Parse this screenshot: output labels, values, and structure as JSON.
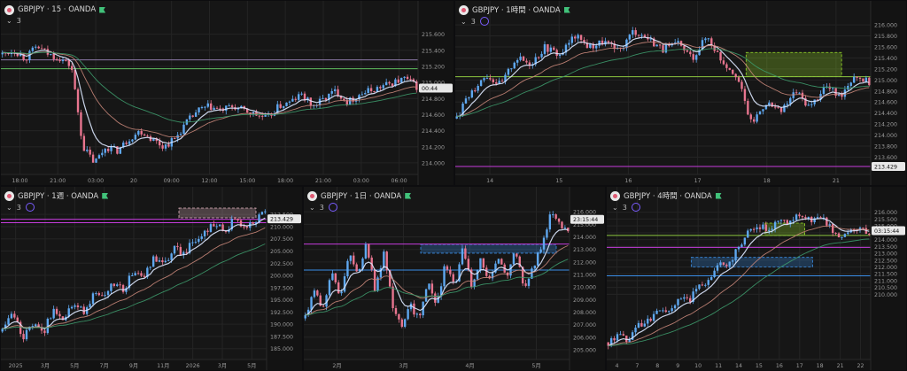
{
  "theme": {
    "bg": "#161616",
    "up": "#5fa8f0",
    "down": "#e8758f",
    "ma_fast": "#dde8ff",
    "ma_mid": "#c9877a",
    "ma_slow": "#3d9a6c"
  },
  "chart_data": [
    {
      "type": "candlestick",
      "symbol": "GBPJPY · 15 · OANDA",
      "indicator_count": "3",
      "ylim": [
        213.9,
        215.75
      ],
      "yticks": [
        "215.600",
        "215.400",
        "215.200",
        "215.000",
        "214.800",
        "214.600",
        "214.400",
        "214.200",
        "214.000"
      ],
      "xticks": [
        "18:00",
        "21:00",
        "03:00",
        "20",
        "09:00",
        "12:00",
        "15:00",
        "18:00",
        "21:00",
        "03:00",
        "06:00"
      ],
      "path": [
        215.35,
        215.4,
        215.3,
        215.45,
        215.35,
        215.3,
        215.2,
        214.2,
        214.0,
        214.2,
        214.15,
        214.3,
        214.4,
        214.3,
        214.2,
        214.3,
        214.5,
        214.65,
        214.7,
        214.65,
        214.7,
        214.65,
        214.6,
        214.55,
        214.7,
        214.75,
        214.85,
        214.7,
        214.8,
        214.9,
        214.75,
        214.85,
        214.9,
        214.95,
        215.0,
        215.05,
        214.95
      ],
      "hlines": [
        {
          "value": 215.17,
          "color": "#5fbf5f"
        },
        {
          "value": 215.28,
          "color": "#8c7aa8"
        }
      ],
      "price_label": {
        "value": "00:44",
        "y": 214.93
      }
    },
    {
      "type": "candlestick",
      "symbol": "GBPJPY · 1時間 · OANDA",
      "indicator_count": "3",
      "ylim": [
        213.35,
        216.05
      ],
      "yticks": [
        "216.000",
        "215.800",
        "215.600",
        "215.400",
        "215.200",
        "215.000",
        "214.800",
        "214.600",
        "214.400",
        "214.200",
        "214.000",
        "213.800",
        "213.600"
      ],
      "xticks": [
        "14",
        "15",
        "16",
        "17",
        "18",
        "21"
      ],
      "path": [
        214.3,
        214.8,
        215.1,
        214.9,
        215.4,
        215.3,
        215.6,
        215.45,
        215.8,
        215.6,
        215.7,
        215.5,
        215.9,
        215.75,
        215.55,
        215.65,
        215.4,
        215.8,
        215.35,
        215.1,
        214.2,
        214.6,
        214.4,
        214.8,
        214.5,
        214.9,
        214.7,
        215.1,
        214.95
      ],
      "hlines": [
        {
          "value": 215.06,
          "color": "#8cc63f"
        },
        {
          "value": 213.43,
          "color": "#c53cdc"
        }
      ],
      "zones": [
        {
          "y1": 215.06,
          "y2": 215.5,
          "x1": 0.7,
          "x2": 0.93,
          "color": "#9be02a"
        }
      ],
      "price_label": {
        "value": "213.429",
        "y": 213.43
      }
    },
    {
      "type": "candlestick",
      "symbol": "GBPJPY · 1週 · OANDA",
      "indicator_count": "3",
      "ylim": [
        183.5,
        213.8
      ],
      "yticks": [
        "212.500",
        "210.000",
        "207.500",
        "205.000",
        "202.500",
        "200.000",
        "197.500",
        "195.000",
        "192.500",
        "190.000",
        "187.500",
        "185.000"
      ],
      "xticks": [
        "2025",
        "3月",
        "5月",
        "7月",
        "9月",
        "11月",
        "2026",
        "3月",
        "5月"
      ],
      "path": [
        188.5,
        192.5,
        187.0,
        190.0,
        188.0,
        193.0,
        191.5,
        194.0,
        192.5,
        196.0,
        195.0,
        198.5,
        197.0,
        201.0,
        199.5,
        203.5,
        202.0,
        205.5,
        204.5,
        207.5,
        208.5,
        211.0,
        208.5,
        212.0,
        209.5,
        211.5,
        213.0
      ],
      "hlines": [
        {
          "value": 210.8,
          "color": "#c53cdc"
        },
        {
          "value": 211.5,
          "color": "#c53cdc"
        }
      ],
      "zones": [
        {
          "y1": 211.8,
          "y2": 213.8,
          "x1": 0.67,
          "x2": 0.96,
          "color": "#e0b3bd"
        }
      ],
      "price_label": {
        "value": "213.429",
        "y": 211.6
      }
    },
    {
      "type": "candlestick",
      "symbol": "GBPJPY · 1日 · OANDA",
      "indicator_count": "3",
      "ylim": [
        204.5,
        216.3
      ],
      "yticks": [
        "216.000",
        "215.000",
        "214.000",
        "213.000",
        "212.000",
        "211.000",
        "210.000",
        "209.000",
        "208.000",
        "207.000",
        "206.000",
        "205.000"
      ],
      "xticks": [
        "2月",
        "3月",
        "4月",
        "5月"
      ],
      "path": [
        207.5,
        210.0,
        208.0,
        211.5,
        209.0,
        213.0,
        211.0,
        213.5,
        209.5,
        213.0,
        208.5,
        206.5,
        208.5,
        207.5,
        210.5,
        208.5,
        212.0,
        210.0,
        213.0,
        210.0,
        212.5,
        210.5,
        212.5,
        211.0,
        213.0,
        210.0,
        211.5,
        213.5,
        215.7,
        215.0,
        214.2
      ],
      "hlines": [
        {
          "value": 213.43,
          "color": "#c53cdc"
        },
        {
          "value": 211.35,
          "color": "#3b8fe8"
        }
      ],
      "zones": [
        {
          "y1": 212.7,
          "y2": 213.4,
          "x1": 0.44,
          "x2": 0.95,
          "color": "#3b8fe8"
        }
      ],
      "price_label": {
        "value": "23:15:44",
        "y": 215.4
      }
    },
    {
      "type": "candlestick",
      "symbol": "GBPJPY · 4時間 · OANDA",
      "indicator_count": "3",
      "ylim": [
        205.5,
        216.3
      ],
      "yticks": [
        "216.000",
        "215.500",
        "215.000",
        "214.500",
        "214.000",
        "213.500",
        "213.000",
        "212.500",
        "212.000",
        "211.500",
        "211.000",
        "210.500",
        "210.000"
      ],
      "xticks": [
        "4",
        "7",
        "8",
        "9",
        "10",
        "11",
        "14",
        "15",
        "16",
        "17",
        "18",
        "21",
        "22"
      ],
      "path": [
        206.5,
        207.0,
        206.6,
        207.8,
        208.0,
        209.0,
        208.7,
        209.8,
        209.5,
        210.8,
        211.0,
        212.5,
        212.2,
        213.5,
        214.5,
        215.0,
        214.7,
        215.7,
        215.3,
        215.8,
        215.4,
        215.7,
        215.0,
        214.2,
        214.6,
        214.9,
        214.6
      ],
      "hlines": [
        {
          "value": 214.3,
          "color": "#8cc63f"
        },
        {
          "value": 213.43,
          "color": "#c53cdc"
        },
        {
          "value": 211.35,
          "color": "#3b8fe8"
        }
      ],
      "zones": [
        {
          "y1": 214.3,
          "y2": 215.2,
          "x1": 0.6,
          "x2": 0.75,
          "color": "#9be02a"
        },
        {
          "y1": 212.0,
          "y2": 212.7,
          "x1": 0.32,
          "x2": 0.78,
          "color": "#3b8fe8"
        }
      ],
      "price_label": {
        "value": "03:15:44",
        "y": 214.65
      }
    }
  ]
}
